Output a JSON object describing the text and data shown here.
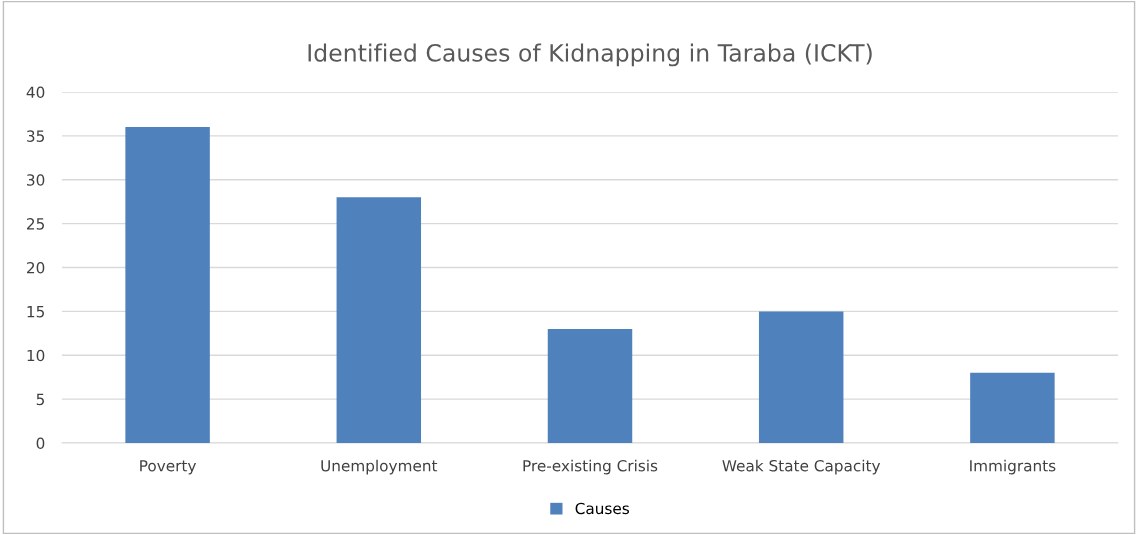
{
  "chart_data": {
    "type": "bar",
    "title": "Identified Causes of Kidnapping in Taraba (ICKT)",
    "categories": [
      "Poverty",
      "Unemployment",
      "Pre-existing Crisis",
      "Weak State Capacity",
      "Immigrants"
    ],
    "series": [
      {
        "name": "Causes",
        "color": "#4f81bd",
        "values": [
          36,
          28,
          13,
          15,
          8
        ]
      }
    ],
    "ylim": [
      0,
      40
    ],
    "yticks": [
      0,
      5,
      10,
      15,
      20,
      25,
      30,
      35,
      40
    ],
    "grid": "y",
    "legend": "bottom"
  }
}
